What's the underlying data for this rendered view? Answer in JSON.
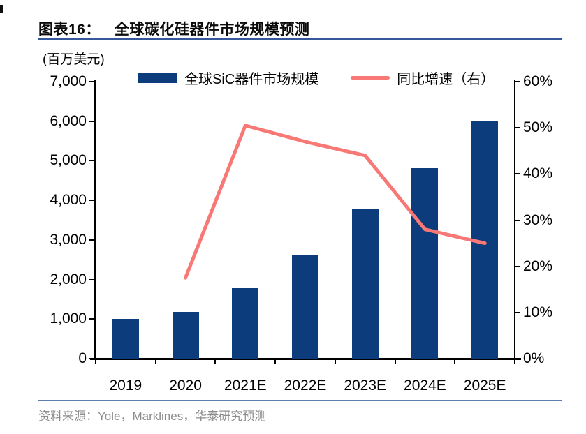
{
  "header": {
    "figure_label": "图表16：",
    "title": "全球碳化硅器件市场规模预测"
  },
  "chart_data": {
    "type": "bar",
    "title": "全球碳化硅器件市场规模预测",
    "unit_label": "(百万美元)",
    "categories": [
      "2019",
      "2020",
      "2021E",
      "2022E",
      "2023E",
      "2024E",
      "2025E"
    ],
    "series": [
      {
        "name": "全球SiC器件市场规模",
        "type": "bar",
        "axis": "left",
        "color": "#0d3c7c",
        "values": [
          1010,
          1180,
          1780,
          2620,
          3770,
          4820,
          6020
        ]
      },
      {
        "name": "同比增速（右）",
        "type": "line",
        "axis": "right",
        "color": "#f87876",
        "values": [
          null,
          17.5,
          50.5,
          47,
          44,
          28,
          25
        ]
      }
    ],
    "left_axis": {
      "min": 0,
      "max": 7000,
      "step": 1000,
      "tick_labels": [
        "0",
        "1,000",
        "2,000",
        "3,000",
        "4,000",
        "5,000",
        "6,000",
        "7,000"
      ]
    },
    "right_axis": {
      "min": 0,
      "max": 60,
      "step": 10,
      "tick_labels": [
        "0%",
        "10%",
        "20%",
        "30%",
        "40%",
        "50%",
        "60%"
      ]
    },
    "legend_position": "top",
    "grid": false
  },
  "footer": {
    "source": "资料来源：Yole，Marklines，华泰研究预测"
  },
  "colors": {
    "bar": "#0d3c7c",
    "line": "#f87876",
    "axis": "#000000",
    "title_underline": "#35589a",
    "footer_divider": "#5a7fad",
    "source_text": "#8c8c8c"
  }
}
